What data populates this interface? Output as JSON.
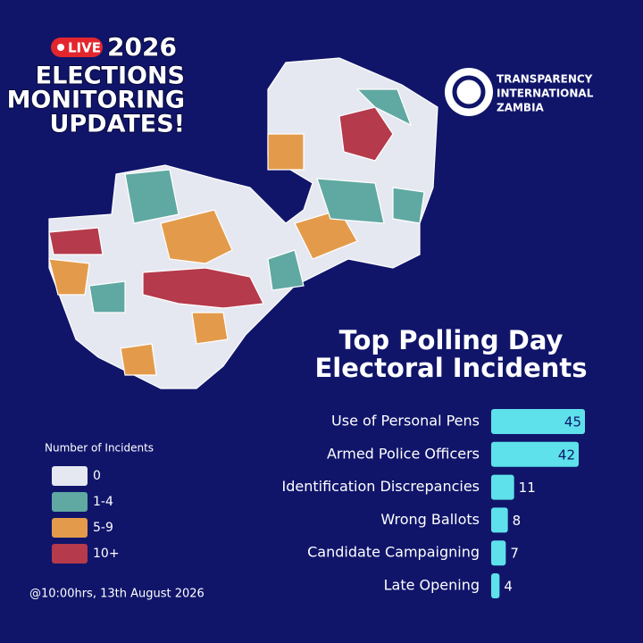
{
  "header": {
    "live": "LIVE",
    "year": "2026",
    "lines": [
      "ELECTIONS",
      "MONITORING",
      "UPDATES!"
    ]
  },
  "logo": {
    "lines": [
      "TRANSPARENCY",
      "INTERNATIONAL",
      "ZAMBIA"
    ]
  },
  "map_legend": {
    "title": "Number of Incidents",
    "items": [
      {
        "label": "0",
        "color": "#e6e8f1"
      },
      {
        "label": "1-4",
        "color": "#5fa9a2"
      },
      {
        "label": "5-9",
        "color": "#e39b4b"
      },
      {
        "label": "10+",
        "color": "#b53a4b"
      }
    ]
  },
  "footer": "@10:00hrs, 13th August 2026",
  "chart_data": {
    "type": "bar",
    "orientation": "horizontal",
    "title": [
      "Top Polling Day",
      "Electoral Incidents"
    ],
    "categories": [
      "Use of Personal Pens",
      "Armed Police Officers",
      "Identification Discrepancies",
      "Wrong Ballots",
      "Candidate Campaigning",
      "Late Opening"
    ],
    "values": [
      45,
      42,
      11,
      8,
      7,
      4
    ],
    "color": "#5ee1ea"
  }
}
